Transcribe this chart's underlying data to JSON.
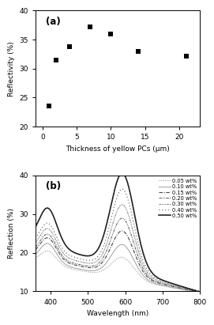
{
  "panel_a": {
    "title": "(a)",
    "xlabel": "Thickness of yellow PCs (μm)",
    "ylabel": "Reflectivity (%)",
    "xlim": [
      -1,
      23
    ],
    "ylim": [
      20,
      40
    ],
    "yticks": [
      20,
      25,
      30,
      35,
      40
    ],
    "xticks": [
      0,
      5,
      10,
      15,
      20
    ],
    "x": [
      1,
      2,
      4,
      7,
      10,
      14,
      21
    ],
    "y": [
      23.5,
      31.5,
      33.8,
      37.2,
      36.0,
      33.0,
      32.2
    ],
    "marker": "s",
    "color": "black",
    "markersize": 4
  },
  "panel_b": {
    "title": "(b)",
    "xlabel": "Wavelength (nm)",
    "ylabel": "Reflection (%)",
    "xlim": [
      360,
      800
    ],
    "ylim": [
      10,
      40
    ],
    "yticks": [
      10,
      20,
      30,
      40
    ],
    "xticks": [
      400,
      500,
      600,
      700,
      800
    ],
    "legend_labels": [
      "0.05 wt%",
      "0.10 wt%",
      "0.15 wt%",
      "0.20 wt%",
      "0.30 wt%",
      "0.40 wt%",
      "0.50 wt%"
    ]
  },
  "background_color": "#ffffff"
}
